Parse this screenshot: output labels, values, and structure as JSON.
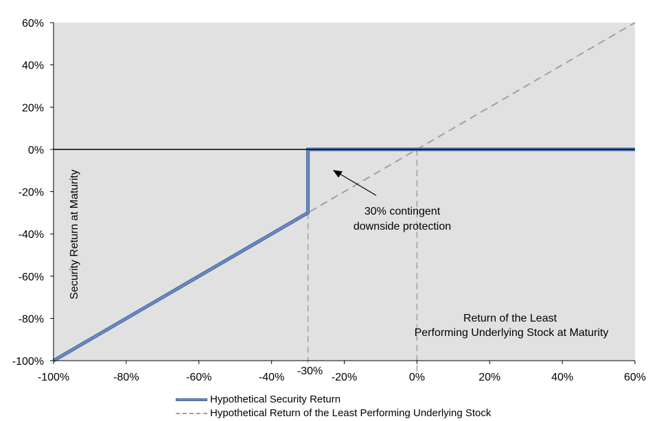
{
  "chart_data": {
    "type": "line",
    "xlabel": "Return of the Least Performing Underlying Stock at Maturity",
    "xlabel_lines": [
      "Return of the Least",
      "Performing Underlying Stock at Maturity"
    ],
    "ylabel": "Security Return at Maturity",
    "xlim": [
      -100,
      60
    ],
    "ylim": [
      -100,
      60
    ],
    "x_ticks": [
      "-100%",
      "-80%",
      "-60%",
      "-40%",
      "-20%",
      "0%",
      "20%",
      "40%",
      "60%"
    ],
    "y_ticks": [
      "60%",
      "40%",
      "20%",
      "0%",
      "-20%",
      "-40%",
      "-60%",
      "-80%",
      "-100%"
    ],
    "x_tick_values": [
      -100,
      -80,
      -60,
      -40,
      -20,
      0,
      20,
      40,
      60
    ],
    "y_tick_values": [
      60,
      40,
      20,
      0,
      -20,
      -40,
      -60,
      -80,
      -100
    ],
    "barrier_label": "-30%",
    "barrier_value": -30,
    "grid": false,
    "background_color": "#e1e1e1",
    "series": [
      {
        "name": "Hypothetical Security Return",
        "color": "#6b8cc4",
        "x": [
          -100,
          -30,
          -30,
          60
        ],
        "y": [
          -100,
          -30,
          0,
          0
        ]
      },
      {
        "name": "Hypothetical Return of the Least Performing Underlying Stock",
        "color": "#a0a0a0",
        "style": "dashed",
        "x": [
          -100,
          60
        ],
        "y": [
          -100,
          60
        ]
      }
    ],
    "annotation": {
      "lines": [
        "30% contingent",
        "downside protection"
      ]
    },
    "legend_position": "bottom"
  }
}
